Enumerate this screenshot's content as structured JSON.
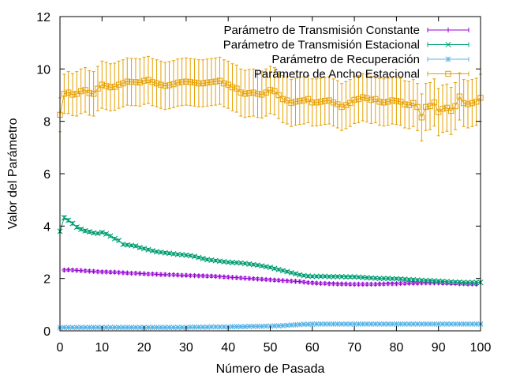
{
  "chart_data": {
    "type": "line",
    "title": "",
    "xlabel": "Número de Pasada",
    "ylabel": "Valor del Parámetro",
    "xlim": [
      0,
      100
    ],
    "ylim": [
      0,
      12
    ],
    "x_ticks": [
      0,
      10,
      20,
      30,
      40,
      50,
      60,
      70,
      80,
      90,
      100
    ],
    "y_ticks": [
      0,
      2,
      4,
      6,
      8,
      10,
      12
    ],
    "grid": false,
    "legend_position": "top-right",
    "x_every": 1,
    "series": [
      {
        "name": "Parámetro de Transmisión Constante",
        "color": "#9400d3",
        "marker": "plus",
        "error_bars": true,
        "x_start": 1,
        "values": [
          2.32,
          2.33,
          2.32,
          2.31,
          2.3,
          2.29,
          2.28,
          2.27,
          2.26,
          2.25,
          2.25,
          2.24,
          2.24,
          2.23,
          2.22,
          2.21,
          2.2,
          2.2,
          2.19,
          2.18,
          2.17,
          2.17,
          2.16,
          2.15,
          2.15,
          2.14,
          2.14,
          2.13,
          2.12,
          2.12,
          2.11,
          2.11,
          2.1,
          2.1,
          2.09,
          2.09,
          2.08,
          2.07,
          2.06,
          2.05,
          2.04,
          2.03,
          2.02,
          2.01,
          2.0,
          1.99,
          1.98,
          1.97,
          1.96,
          1.95,
          1.94,
          1.93,
          1.92,
          1.91,
          1.9,
          1.89,
          1.88,
          1.86,
          1.84,
          1.83,
          1.82,
          1.81,
          1.81,
          1.8,
          1.8,
          1.79,
          1.79,
          1.79,
          1.78,
          1.78,
          1.78,
          1.78,
          1.78,
          1.78,
          1.78,
          1.79,
          1.79,
          1.8,
          1.8,
          1.8,
          1.81,
          1.81,
          1.82,
          1.82,
          1.82,
          1.83,
          1.83,
          1.83,
          1.83,
          1.83,
          1.82,
          1.82,
          1.81,
          1.81,
          1.8,
          1.8,
          1.79,
          1.79,
          1.78
        ],
        "errors": [
          0.05,
          0.05,
          0.05,
          0.05,
          0.05,
          0.05,
          0.05,
          0.05,
          0.05,
          0.05,
          0.05,
          0.05,
          0.05,
          0.05,
          0.05,
          0.05,
          0.05,
          0.05,
          0.05,
          0.05,
          0.05,
          0.05,
          0.05,
          0.05,
          0.05,
          0.05,
          0.05,
          0.05,
          0.05,
          0.05,
          0.05,
          0.05,
          0.05,
          0.05,
          0.05,
          0.05,
          0.05,
          0.05,
          0.05,
          0.05,
          0.05,
          0.05,
          0.05,
          0.05,
          0.05,
          0.05,
          0.05,
          0.05,
          0.05,
          0.05,
          0.05,
          0.05,
          0.05,
          0.05,
          0.05,
          0.05,
          0.05,
          0.05,
          0.05,
          0.05,
          0.05,
          0.05,
          0.05,
          0.05,
          0.05,
          0.05,
          0.05,
          0.05,
          0.05,
          0.05,
          0.05,
          0.05,
          0.05,
          0.05,
          0.05,
          0.05,
          0.05,
          0.05,
          0.05,
          0.05,
          0.05,
          0.05,
          0.05,
          0.05,
          0.05,
          0.05,
          0.05,
          0.05,
          0.05,
          0.05,
          0.05,
          0.05,
          0.05,
          0.05,
          0.05,
          0.05,
          0.05,
          0.05,
          0.05
        ]
      },
      {
        "name": "Parámetro de Transmisión Estacional",
        "color": "#009e73",
        "marker": "cross",
        "error_bars": true,
        "x_start": 0,
        "values": [
          3.8,
          4.32,
          4.22,
          4.1,
          3.96,
          3.88,
          3.82,
          3.78,
          3.74,
          3.72,
          3.76,
          3.7,
          3.62,
          3.52,
          3.45,
          3.3,
          3.28,
          3.26,
          3.24,
          3.18,
          3.14,
          3.1,
          3.06,
          3.02,
          3.0,
          2.98,
          2.96,
          2.94,
          2.92,
          2.91,
          2.89,
          2.87,
          2.84,
          2.8,
          2.76,
          2.72,
          2.7,
          2.68,
          2.66,
          2.64,
          2.62,
          2.61,
          2.6,
          2.59,
          2.57,
          2.55,
          2.53,
          2.51,
          2.48,
          2.45,
          2.42,
          2.38,
          2.34,
          2.3,
          2.26,
          2.22,
          2.18,
          2.14,
          2.11,
          2.09,
          2.08,
          2.08,
          2.08,
          2.08,
          2.07,
          2.07,
          2.07,
          2.07,
          2.06,
          2.06,
          2.06,
          2.05,
          2.04,
          2.03,
          2.02,
          2.01,
          2.0,
          2.0,
          2.0,
          1.99,
          1.99,
          1.98,
          1.97,
          1.96,
          1.95,
          1.94,
          1.93,
          1.92,
          1.92,
          1.91,
          1.9,
          1.89,
          1.88,
          1.87,
          1.86,
          1.86,
          1.85,
          1.85,
          1.85,
          1.85,
          1.85
        ],
        "errors": [
          0.05,
          0.07,
          0.06,
          0.06,
          0.06,
          0.06,
          0.06,
          0.06,
          0.05,
          0.05,
          0.05,
          0.05,
          0.05,
          0.05,
          0.05,
          0.05,
          0.05,
          0.05,
          0.05,
          0.05,
          0.05,
          0.05,
          0.05,
          0.05,
          0.05,
          0.05,
          0.05,
          0.05,
          0.05,
          0.05,
          0.05,
          0.05,
          0.05,
          0.05,
          0.05,
          0.05,
          0.05,
          0.05,
          0.05,
          0.05,
          0.05,
          0.05,
          0.05,
          0.05,
          0.05,
          0.05,
          0.05,
          0.05,
          0.05,
          0.05,
          0.05,
          0.05,
          0.05,
          0.05,
          0.05,
          0.05,
          0.05,
          0.05,
          0.05,
          0.05,
          0.05,
          0.05,
          0.05,
          0.05,
          0.05,
          0.05,
          0.05,
          0.05,
          0.05,
          0.05,
          0.05,
          0.05,
          0.05,
          0.05,
          0.05,
          0.05,
          0.05,
          0.05,
          0.05,
          0.05,
          0.05,
          0.05,
          0.05,
          0.05,
          0.05,
          0.05,
          0.05,
          0.05,
          0.05,
          0.05,
          0.05,
          0.05,
          0.05,
          0.05,
          0.05,
          0.05,
          0.05,
          0.05,
          0.05,
          0.05,
          0.05
        ]
      },
      {
        "name": "Parámetro de Recuperación",
        "color": "#56b4e9",
        "marker": "star",
        "error_bars": true,
        "x_start": 0,
        "values": [
          0.12,
          0.13,
          0.13,
          0.13,
          0.13,
          0.13,
          0.13,
          0.13,
          0.13,
          0.13,
          0.13,
          0.13,
          0.13,
          0.13,
          0.13,
          0.13,
          0.13,
          0.13,
          0.13,
          0.13,
          0.13,
          0.13,
          0.13,
          0.13,
          0.13,
          0.13,
          0.13,
          0.13,
          0.13,
          0.13,
          0.13,
          0.14,
          0.14,
          0.14,
          0.14,
          0.14,
          0.15,
          0.15,
          0.15,
          0.15,
          0.15,
          0.16,
          0.16,
          0.16,
          0.16,
          0.17,
          0.17,
          0.17,
          0.17,
          0.18,
          0.18,
          0.19,
          0.19,
          0.2,
          0.21,
          0.22,
          0.23,
          0.24,
          0.25,
          0.25,
          0.26,
          0.26,
          0.26,
          0.26,
          0.26,
          0.26,
          0.26,
          0.26,
          0.26,
          0.26,
          0.26,
          0.26,
          0.26,
          0.26,
          0.26,
          0.26,
          0.26,
          0.26,
          0.26,
          0.26,
          0.26,
          0.26,
          0.26,
          0.26,
          0.26,
          0.26,
          0.26,
          0.26,
          0.26,
          0.26,
          0.26,
          0.26,
          0.26,
          0.26,
          0.26,
          0.26,
          0.26,
          0.26,
          0.26,
          0.26,
          0.26
        ],
        "errors": [
          0.04,
          0.04,
          0.04,
          0.04,
          0.04,
          0.04,
          0.04,
          0.04,
          0.04,
          0.04,
          0.04,
          0.04,
          0.04,
          0.04,
          0.04,
          0.04,
          0.04,
          0.04,
          0.04,
          0.04,
          0.04,
          0.04,
          0.04,
          0.04,
          0.04,
          0.04,
          0.04,
          0.04,
          0.04,
          0.04,
          0.04,
          0.04,
          0.04,
          0.04,
          0.04,
          0.04,
          0.04,
          0.04,
          0.04,
          0.04,
          0.04,
          0.04,
          0.04,
          0.04,
          0.04,
          0.04,
          0.04,
          0.04,
          0.04,
          0.04,
          0.04,
          0.04,
          0.04,
          0.04,
          0.04,
          0.04,
          0.04,
          0.04,
          0.04,
          0.04,
          0.04,
          0.04,
          0.04,
          0.04,
          0.04,
          0.04,
          0.04,
          0.04,
          0.04,
          0.04,
          0.04,
          0.04,
          0.04,
          0.04,
          0.04,
          0.04,
          0.04,
          0.04,
          0.04,
          0.04,
          0.04,
          0.04,
          0.04,
          0.04,
          0.04,
          0.04,
          0.04,
          0.04,
          0.04,
          0.04,
          0.04,
          0.04,
          0.04,
          0.04,
          0.04,
          0.04,
          0.04,
          0.04,
          0.04,
          0.04,
          0.04
        ]
      },
      {
        "name": "Parámetro de Ancho Estacional",
        "color": "#e69f00",
        "marker": "square",
        "error_bars": true,
        "x_start": 0,
        "values": [
          8.25,
          9.05,
          9.1,
          9.02,
          9.05,
          9.15,
          9.2,
          9.08,
          9.05,
          9.25,
          9.4,
          9.35,
          9.3,
          9.32,
          9.4,
          9.45,
          9.52,
          9.5,
          9.5,
          9.48,
          9.55,
          9.58,
          9.5,
          9.45,
          9.4,
          9.35,
          9.38,
          9.42,
          9.48,
          9.5,
          9.52,
          9.5,
          9.48,
          9.45,
          9.45,
          9.48,
          9.5,
          9.52,
          9.55,
          9.45,
          9.4,
          9.3,
          9.25,
          9.1,
          9.05,
          9.08,
          9.1,
          9.05,
          9.02,
          9.1,
          9.2,
          9.15,
          9.0,
          8.85,
          8.8,
          8.7,
          8.75,
          8.78,
          8.8,
          8.85,
          8.72,
          8.72,
          8.75,
          8.78,
          8.8,
          8.72,
          8.65,
          8.55,
          8.62,
          8.7,
          8.82,
          8.85,
          8.92,
          8.88,
          8.82,
          8.85,
          8.75,
          8.72,
          8.75,
          8.8,
          8.78,
          8.75,
          8.65,
          8.62,
          8.7,
          8.55,
          8.15,
          8.55,
          8.58,
          8.72,
          8.35,
          8.48,
          8.52,
          8.4,
          8.58,
          8.95,
          8.7,
          8.65,
          8.7,
          8.75,
          8.9
        ],
        "errors": [
          0.65,
          0.75,
          0.8,
          0.8,
          0.85,
          0.85,
          0.85,
          0.85,
          0.85,
          0.85,
          0.9,
          0.9,
          0.9,
          0.9,
          0.9,
          0.9,
          0.9,
          0.9,
          0.9,
          0.9,
          0.9,
          0.9,
          0.9,
          0.9,
          0.9,
          0.9,
          0.9,
          0.9,
          0.9,
          0.9,
          0.9,
          0.9,
          0.9,
          0.9,
          0.9,
          0.9,
          0.9,
          0.9,
          0.9,
          0.9,
          0.9,
          0.9,
          0.9,
          0.9,
          0.9,
          0.9,
          0.9,
          0.9,
          0.9,
          0.9,
          0.9,
          0.9,
          0.9,
          0.9,
          0.9,
          0.9,
          0.9,
          0.9,
          0.9,
          0.9,
          0.9,
          0.9,
          0.9,
          0.9,
          0.9,
          0.9,
          0.9,
          0.9,
          0.9,
          0.9,
          0.9,
          0.9,
          0.9,
          0.9,
          0.9,
          0.9,
          0.9,
          0.9,
          0.9,
          0.9,
          0.9,
          0.9,
          0.9,
          0.9,
          0.9,
          0.9,
          0.9,
          0.9,
          0.9,
          0.9,
          0.9,
          0.9,
          0.9,
          0.9,
          0.9,
          0.9,
          0.9,
          0.9,
          0.9,
          0.9,
          0.9
        ]
      }
    ]
  }
}
